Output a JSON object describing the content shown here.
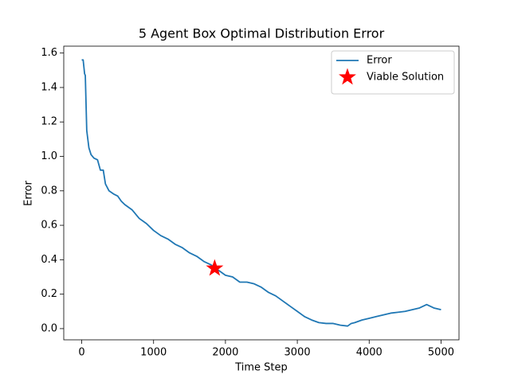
{
  "chart_data": {
    "type": "line",
    "title": "5 Agent Box Optimal Distribution Error",
    "xlabel": "Time Step",
    "ylabel": "Error",
    "xlim": [
      -250,
      5250
    ],
    "ylim": [
      -0.065,
      1.64
    ],
    "xticks": [
      0,
      1000,
      2000,
      3000,
      4000,
      5000
    ],
    "yticks": [
      {
        "value": 0.0,
        "label": "0.0"
      },
      0.2,
      0.4,
      0.6,
      0.8,
      {
        "value": 1.0,
        "label": "1.0"
      },
      1.2,
      1.4,
      1.6
    ],
    "legend": "upper right",
    "series": [
      {
        "name": "Error",
        "color": "#1f77b4",
        "x": [
          0,
          20,
          40,
          50,
          70,
          100,
          130,
          170,
          220,
          260,
          300,
          330,
          380,
          450,
          500,
          550,
          600,
          700,
          800,
          900,
          1000,
          1100,
          1200,
          1300,
          1400,
          1500,
          1600,
          1700,
          1800,
          1900,
          2000,
          2100,
          2200,
          2300,
          2400,
          2500,
          2600,
          2700,
          2800,
          2900,
          3000,
          3100,
          3200,
          3300,
          3400,
          3500,
          3600,
          3700,
          3750,
          3800,
          3900,
          4000,
          4100,
          4200,
          4300,
          4400,
          4500,
          4600,
          4700,
          4800,
          4850,
          4900,
          5000
        ],
        "values": [
          1.56,
          1.56,
          1.48,
          1.47,
          1.15,
          1.05,
          1.01,
          0.99,
          0.98,
          0.92,
          0.92,
          0.84,
          0.8,
          0.78,
          0.77,
          0.74,
          0.72,
          0.69,
          0.64,
          0.61,
          0.57,
          0.54,
          0.52,
          0.49,
          0.47,
          0.44,
          0.42,
          0.39,
          0.37,
          0.34,
          0.31,
          0.3,
          0.27,
          0.27,
          0.26,
          0.24,
          0.21,
          0.19,
          0.16,
          0.13,
          0.1,
          0.07,
          0.05,
          0.035,
          0.03,
          0.03,
          0.02,
          0.015,
          0.03,
          0.035,
          0.05,
          0.06,
          0.07,
          0.08,
          0.09,
          0.095,
          0.1,
          0.11,
          0.12,
          0.14,
          0.13,
          0.12,
          0.11
        ]
      }
    ],
    "markers": [
      {
        "name": "Viable Solution",
        "color": "#ff0000",
        "marker": "star",
        "x": [
          1850
        ],
        "values": [
          0.35
        ]
      }
    ]
  }
}
